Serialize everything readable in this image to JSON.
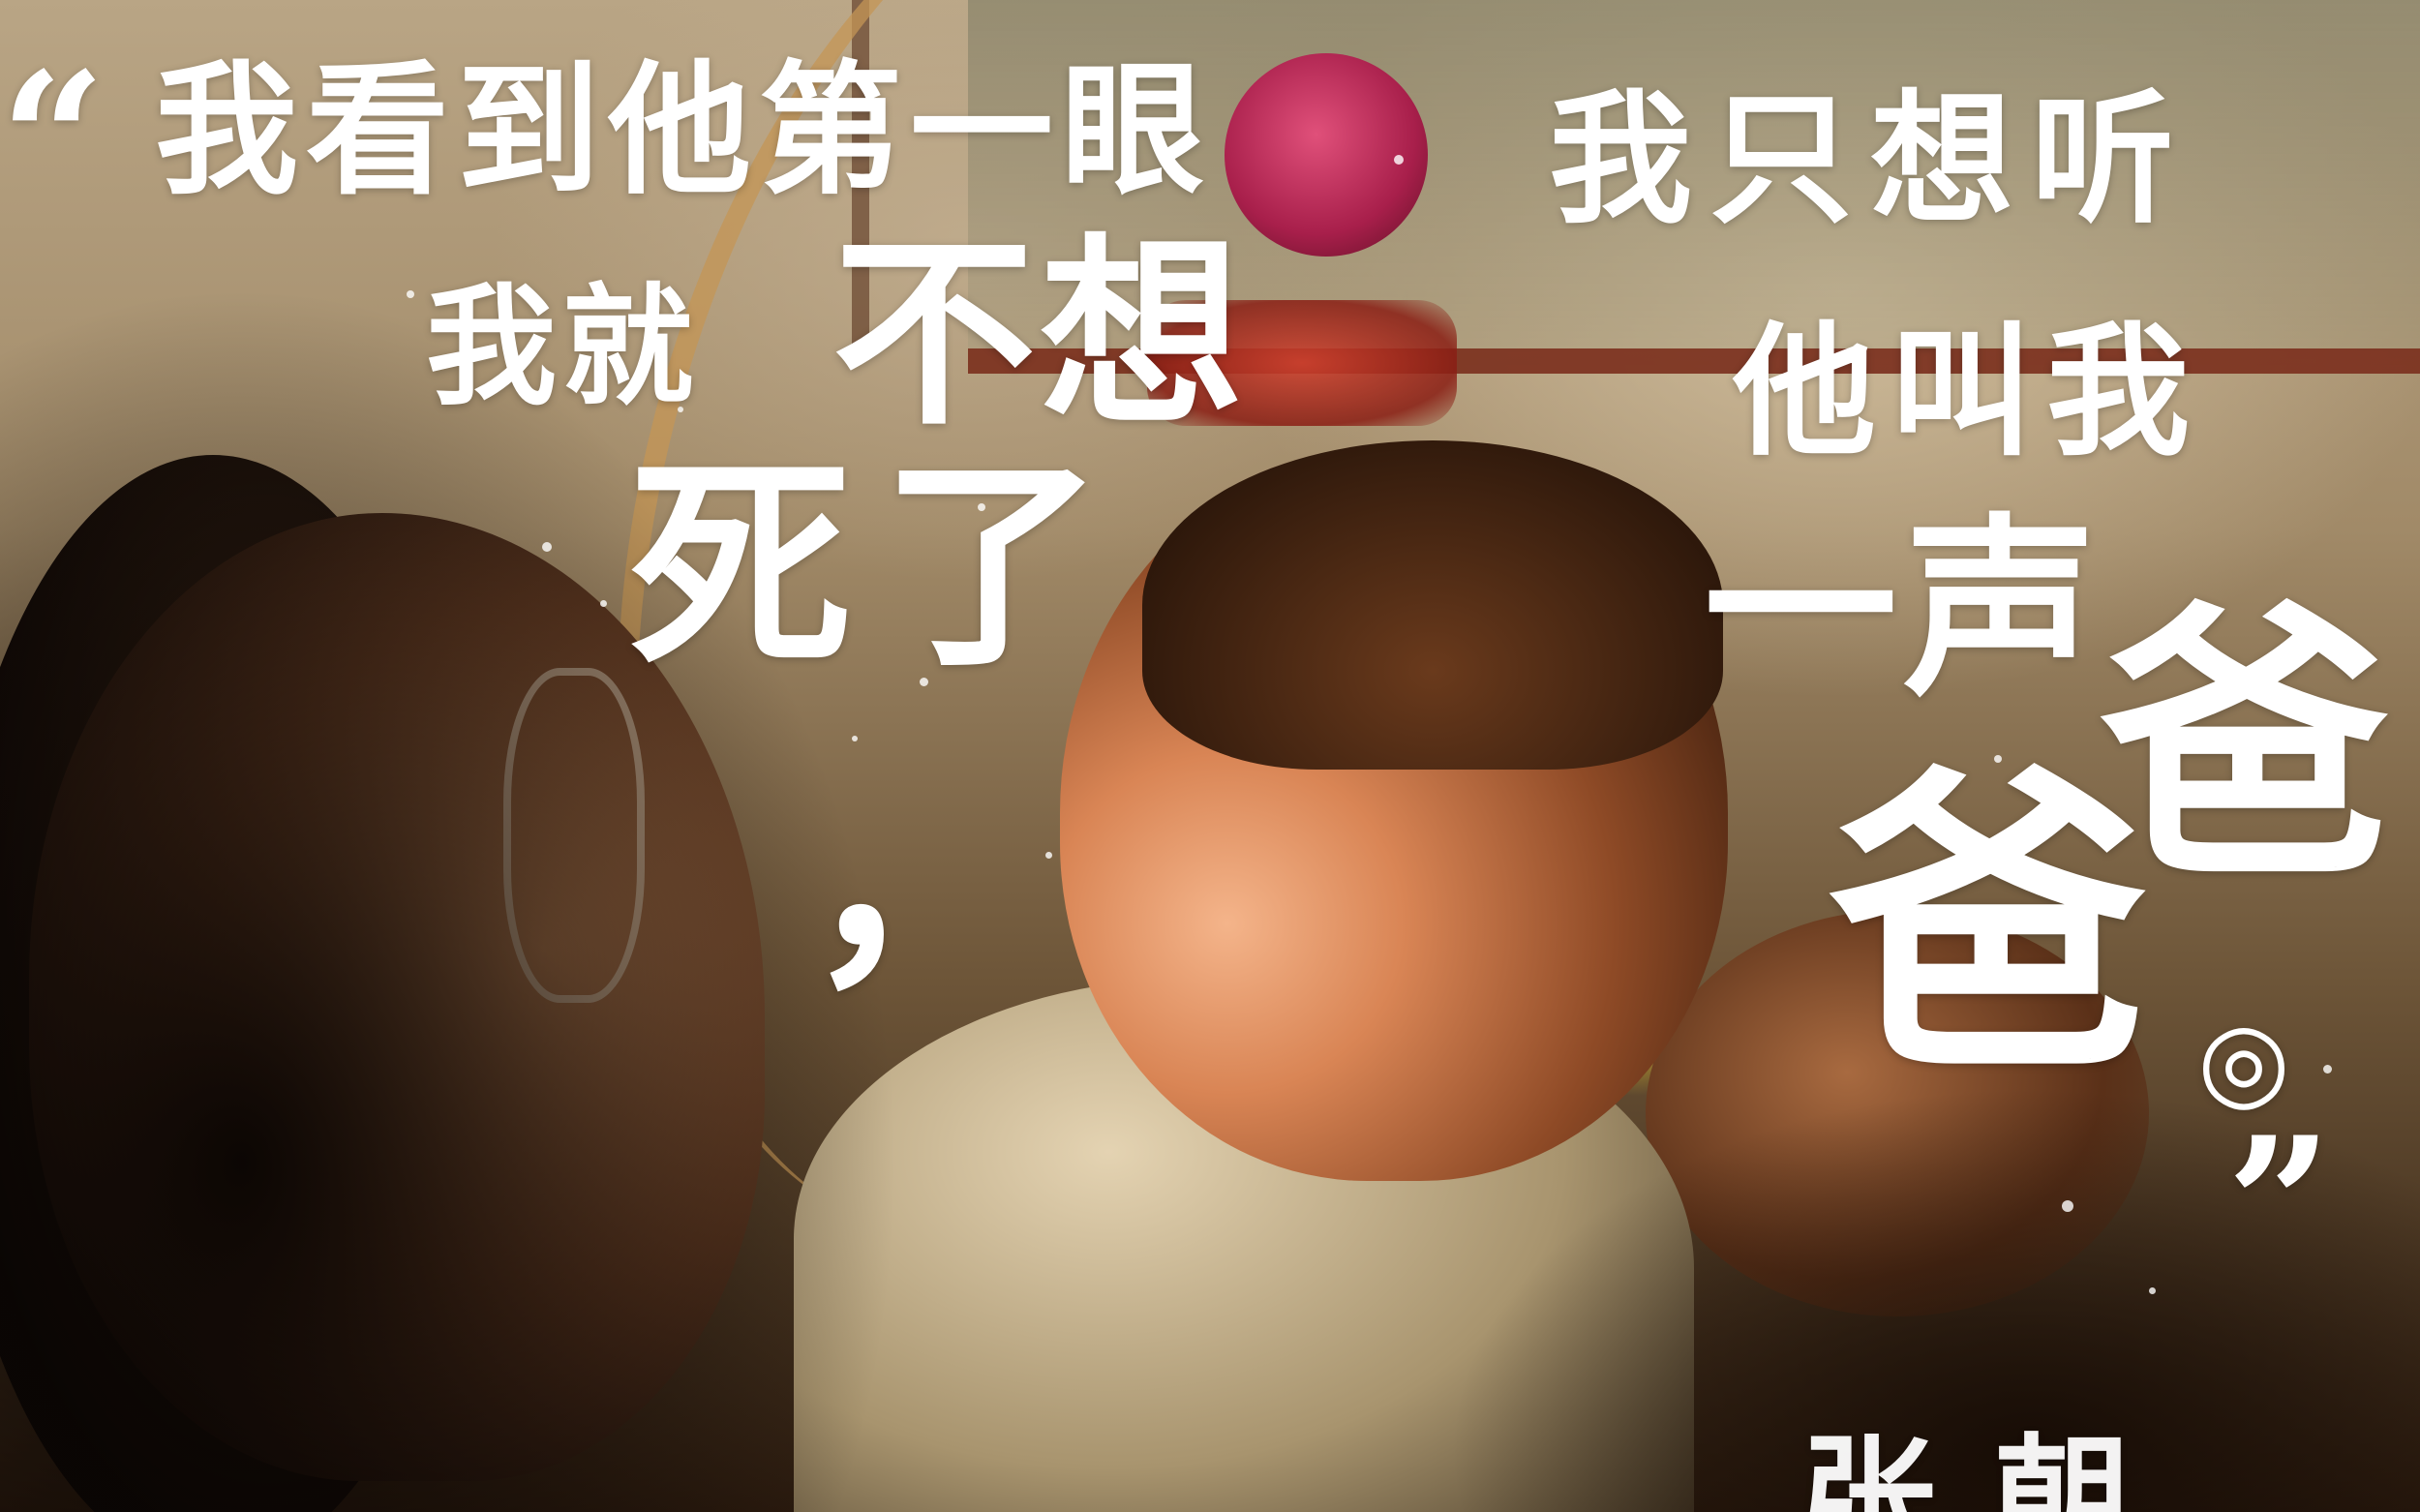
{
  "quote": {
    "open_mark": "“",
    "line_1": "我看到他第一眼",
    "line_2a": "我就",
    "line_2b": "不想",
    "line_3": "死了",
    "comma": "，",
    "right_line_1": "我只想听",
    "right_line_2": "他叫我",
    "right_line_3": "一声",
    "ba_1": "爸",
    "ba_2": "爸",
    "period": "◎",
    "close_mark": "”"
  },
  "signature": "张朝"
}
